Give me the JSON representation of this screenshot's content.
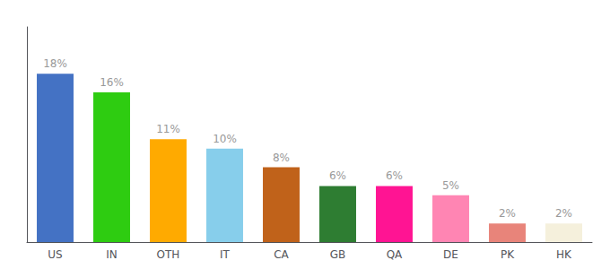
{
  "chart_data": {
    "type": "bar",
    "categories": [
      "US",
      "IN",
      "OTH",
      "IT",
      "CA",
      "GB",
      "QA",
      "DE",
      "PK",
      "HK"
    ],
    "values": [
      18,
      16,
      11,
      10,
      8,
      6,
      6,
      5,
      2,
      2
    ],
    "value_labels": [
      "18%",
      "16%",
      "11%",
      "10%",
      "8%",
      "6%",
      "6%",
      "5%",
      "2%",
      "2%"
    ],
    "colors": [
      "#4472c4",
      "#2ecc11",
      "#ffaa00",
      "#87ceeb",
      "#c0621a",
      "#2e7d32",
      "#ff1493",
      "#ff85b3",
      "#e8847a",
      "#f5f0dc"
    ],
    "data_labels": true,
    "ylim": [
      0,
      23
    ],
    "tick_labels": "x",
    "grid": false
  }
}
